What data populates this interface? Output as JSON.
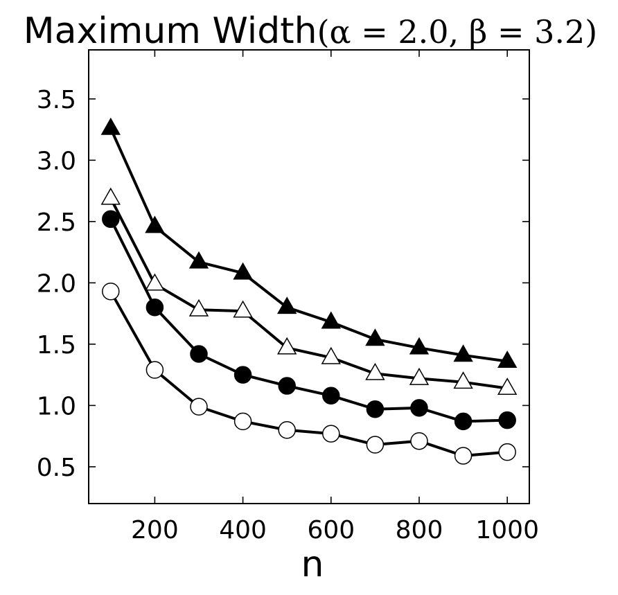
{
  "chart_data": {
    "type": "line",
    "title": "Maximum Width",
    "title_math": "(α = 2.0, β = 3.2)",
    "xlabel": "n",
    "ylabel": "",
    "xlim": [
      50,
      1050
    ],
    "ylim": [
      0.2,
      3.9
    ],
    "x_ticks": [
      200,
      400,
      600,
      800,
      1000
    ],
    "x_tick_labels": [
      "200",
      "400",
      "600",
      "800",
      "1000"
    ],
    "y_ticks": [
      0.5,
      1.0,
      1.5,
      2.0,
      2.5,
      3.0,
      3.5
    ],
    "y_tick_labels": [
      "0.5",
      "1.0",
      "1.5",
      "2.0",
      "2.5",
      "3.0",
      "3.5"
    ],
    "grid": false,
    "x": [
      100,
      200,
      300,
      400,
      500,
      600,
      700,
      800,
      900,
      1000
    ],
    "series": [
      {
        "marker": "triangle-filled",
        "color": "#000000",
        "values": [
          3.26,
          2.46,
          2.17,
          2.08,
          1.8,
          1.68,
          1.54,
          1.47,
          1.41,
          1.36
        ]
      },
      {
        "marker": "triangle-open",
        "color": "#000000",
        "values": [
          2.69,
          1.99,
          1.78,
          1.77,
          1.47,
          1.39,
          1.26,
          1.22,
          1.19,
          1.14
        ]
      },
      {
        "marker": "circle-filled",
        "color": "#000000",
        "values": [
          2.52,
          1.8,
          1.42,
          1.25,
          1.16,
          1.08,
          0.97,
          0.98,
          0.87,
          0.88
        ]
      },
      {
        "marker": "circle-open",
        "color": "#000000",
        "values": [
          1.93,
          1.29,
          0.99,
          0.87,
          0.8,
          0.77,
          0.68,
          0.71,
          0.59,
          0.62
        ]
      }
    ]
  }
}
